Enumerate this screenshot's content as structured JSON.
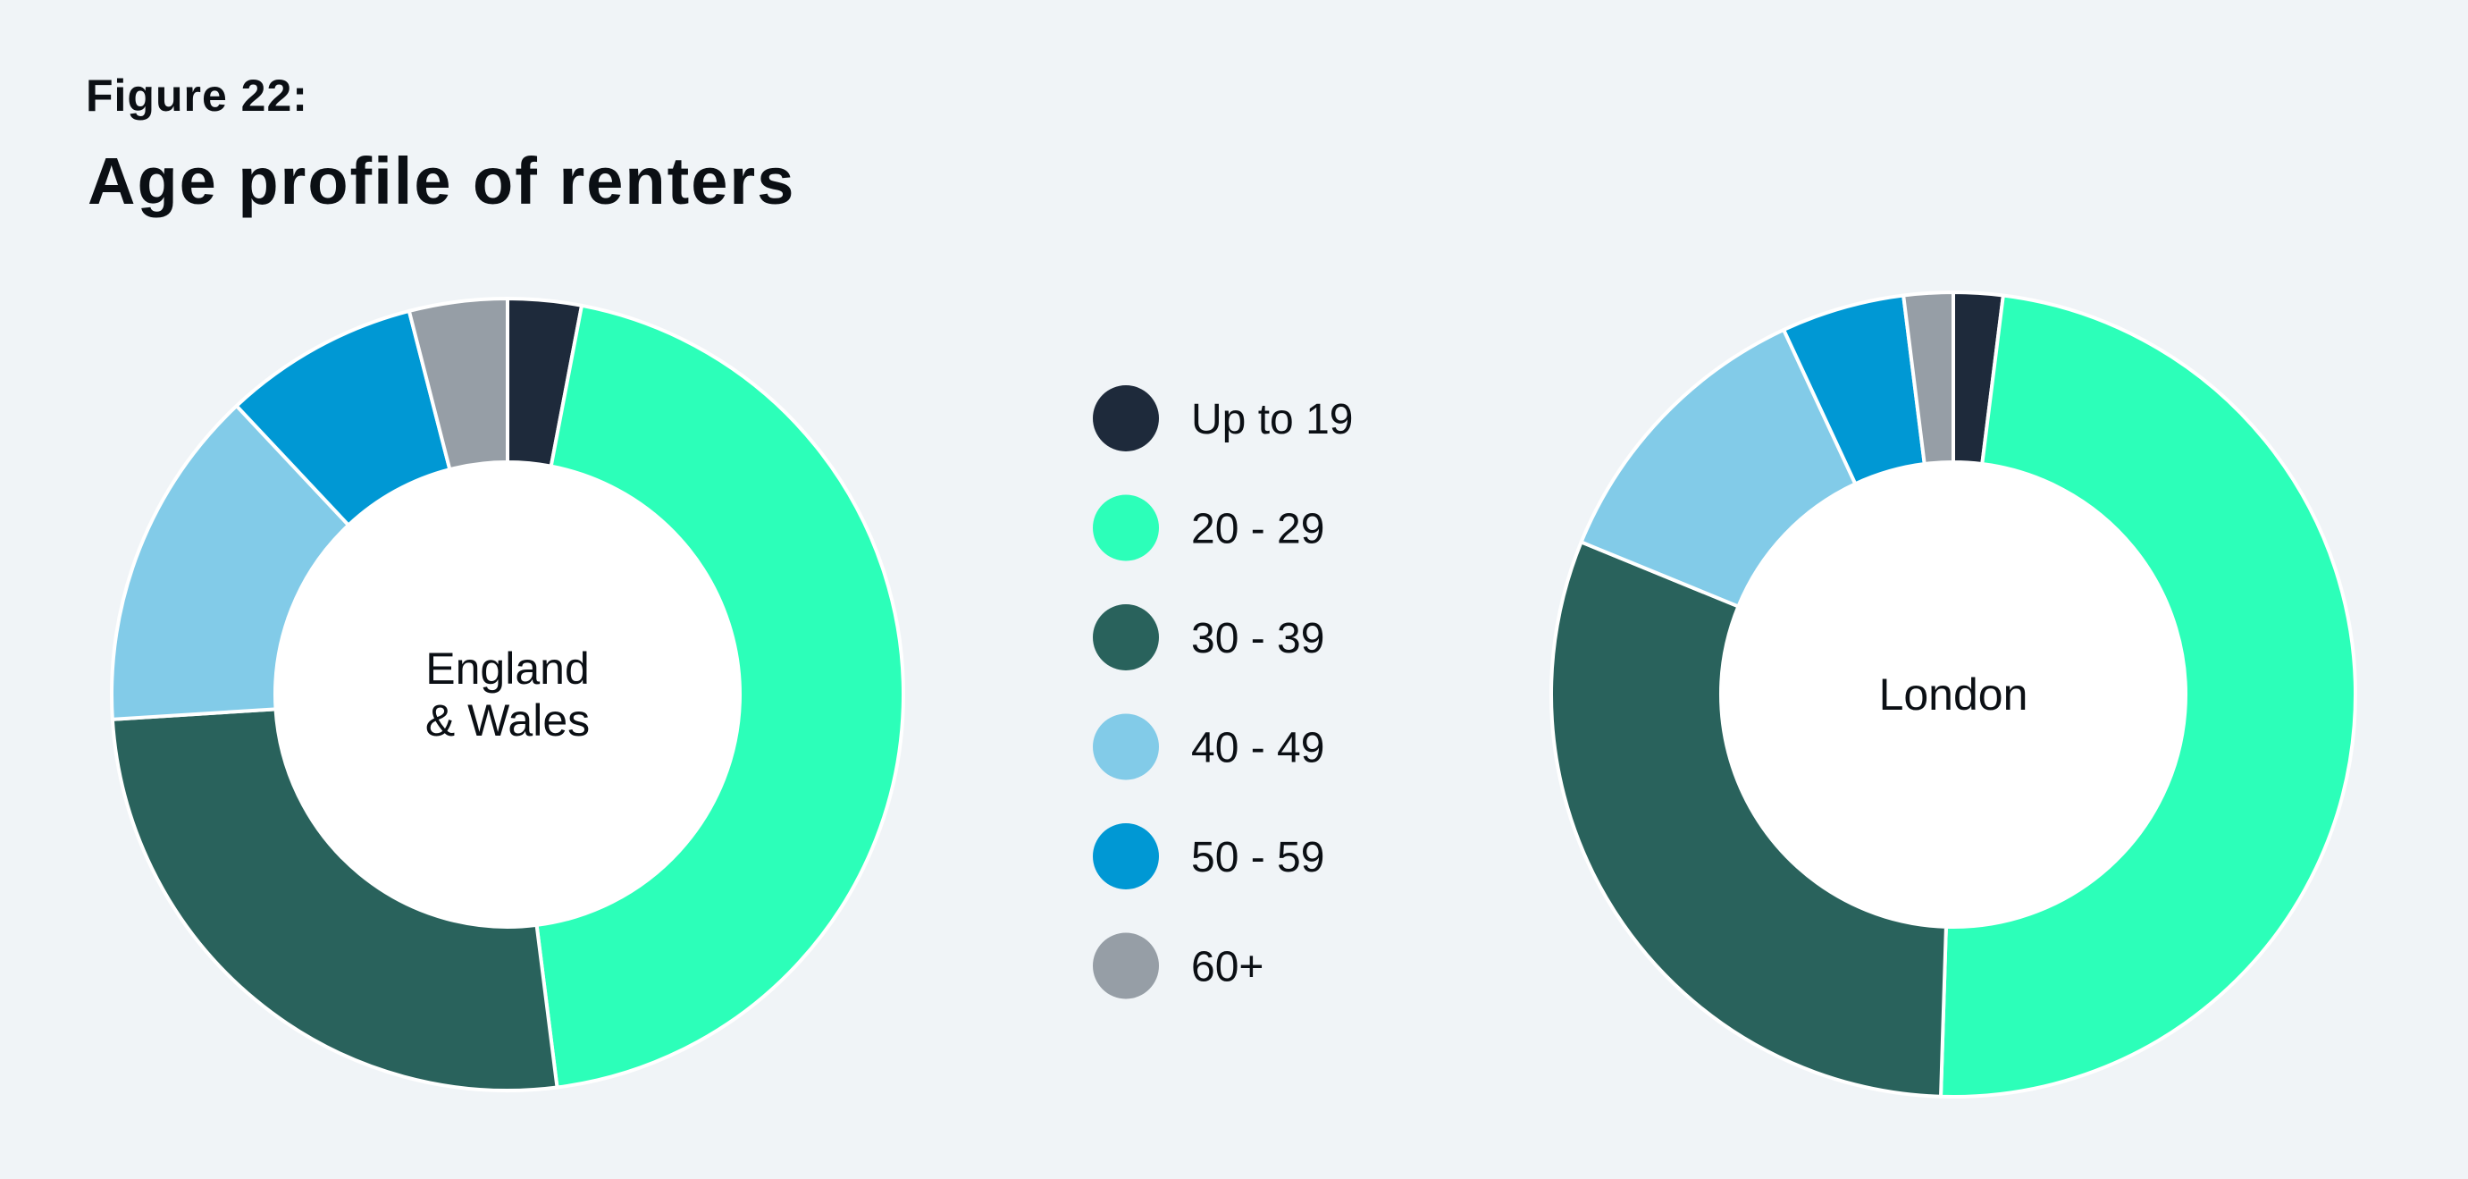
{
  "header": {
    "figure_label": "Figure 22:",
    "title": "Age profile of renters"
  },
  "chart_data": {
    "type": "donut",
    "legend_position": "center",
    "categories": [
      "Up to 19",
      "20 - 29",
      "30 - 39",
      "40 - 49",
      "50 - 59",
      "60+"
    ],
    "colors": [
      "#1e2a3b",
      "#2cffb9",
      "#29625c",
      "#82cbe8",
      "#0098d4",
      "#969ea6"
    ],
    "charts": [
      {
        "label_lines": [
          "England",
          "& Wales"
        ],
        "values": [
          3,
          45,
          26,
          14,
          8,
          4
        ]
      },
      {
        "label_lines": [
          "London"
        ],
        "values": [
          2,
          49,
          31,
          12,
          5,
          2
        ]
      }
    ]
  }
}
